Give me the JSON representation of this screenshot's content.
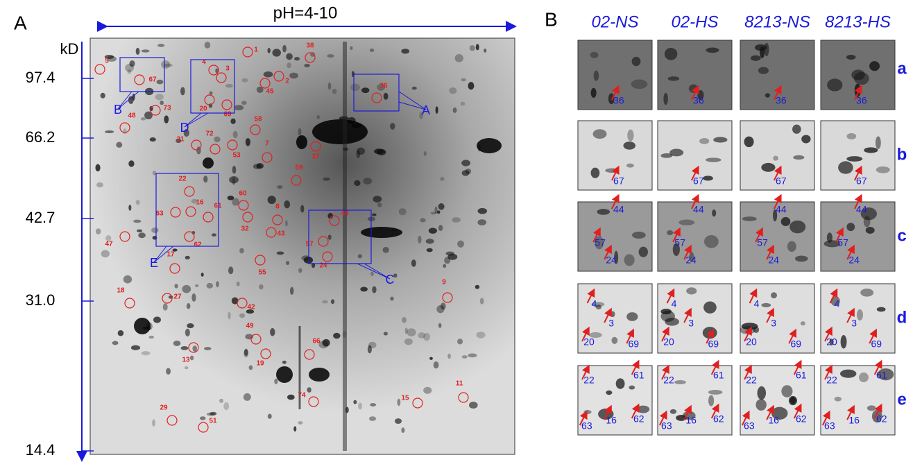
{
  "panel_a": {
    "label": "A",
    "ph_label": "pH=4-10",
    "mw_unit": "kD",
    "mw_ticks": [
      "97.4",
      "66.2",
      "42.7",
      "31.0",
      "14.4"
    ],
    "spots": [
      "1",
      "38",
      "5",
      "67",
      "4",
      "3",
      "2",
      "45",
      "36",
      "20",
      "69",
      "73",
      "48",
      "58",
      "21",
      "72",
      "53",
      "7",
      "37",
      "59",
      "22",
      "60",
      "16",
      "61",
      "63",
      "32",
      "8",
      "44",
      "43",
      "62",
      "47",
      "57",
      "24",
      "17",
      "55",
      "9",
      "27",
      "18",
      "42",
      "49",
      "66",
      "13",
      "19",
      "74",
      "15",
      "11",
      "29",
      "51"
    ],
    "boxes": [
      "A",
      "B",
      "C",
      "D",
      "E"
    ]
  },
  "panel_b": {
    "label": "B",
    "columns": [
      "02-NS",
      "02-HS",
      "8213-NS",
      "8213-HS"
    ],
    "rows": [
      {
        "label": "a",
        "cells": [
          [
            "36"
          ],
          [
            "36"
          ],
          [
            "36"
          ],
          [
            "36"
          ]
        ]
      },
      {
        "label": "b",
        "cells": [
          [
            "67"
          ],
          [
            "67"
          ],
          [
            "67"
          ],
          [
            "67"
          ]
        ]
      },
      {
        "label": "c",
        "cells": [
          [
            "44",
            "57",
            "24"
          ],
          [
            "44",
            "57",
            "24"
          ],
          [
            "44",
            "57",
            "24"
          ],
          [
            "44",
            "57",
            "24"
          ]
        ]
      },
      {
        "label": "d",
        "cells": [
          [
            "4",
            "3",
            "20",
            "69"
          ],
          [
            "4",
            "3",
            "20",
            "69"
          ],
          [
            "4",
            "3",
            "20",
            "69"
          ],
          [
            "4",
            "3",
            "20",
            "69"
          ]
        ]
      },
      {
        "label": "e",
        "cells": [
          [
            "22",
            "61",
            "63",
            "16",
            "62"
          ],
          [
            "22",
            "61",
            "63",
            "16",
            "62"
          ],
          [
            "22",
            "61",
            "63",
            "16",
            "62"
          ],
          [
            "22",
            "61",
            "63",
            "16",
            "62"
          ]
        ]
      }
    ]
  }
}
